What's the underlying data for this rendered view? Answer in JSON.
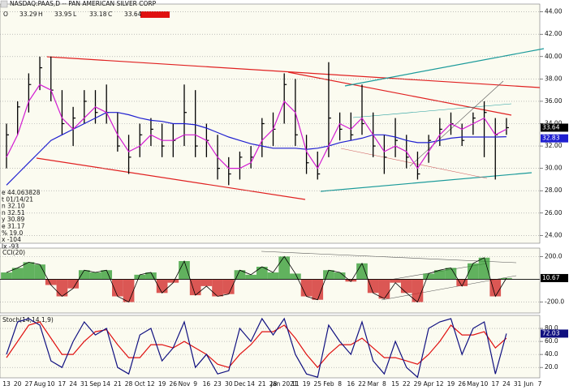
{
  "header": {
    "title": "NASDAQ:PAAS,D -- PAN AMERICAN SILVER CORP",
    "toolbar": [
      {
        "label": "O",
        "value": "33.29"
      },
      {
        "label": "H",
        "value": "33.95"
      },
      {
        "label": "L",
        "value": "33.18"
      },
      {
        "label": "C",
        "value": "33.64"
      }
    ],
    "info": [
      "e  44.063828",
      "t  01/14/21",
      "n  32.10",
      "n  32.51",
      "y  30.89",
      "e  31.17",
      "%  19.0",
      "x  -104",
      "lx  -93"
    ]
  },
  "chart_data": [
    {
      "type": "hlc",
      "ylim": [
        23.3,
        44.7
      ],
      "color": "#000000",
      "yticks": [
        {
          "value": 24,
          "label": "24.00"
        },
        {
          "value": 26,
          "label": "26.00"
        },
        {
          "value": 28,
          "label": "28.00"
        },
        {
          "value": 30,
          "label": "30.00"
        },
        {
          "value": 32,
          "label": "32.00"
        },
        {
          "value": 34,
          "label": "34.00"
        },
        {
          "value": 36,
          "label": "36.00"
        },
        {
          "value": 38,
          "label": "38.00"
        },
        {
          "value": 40,
          "label": "40.00"
        },
        {
          "value": 42,
          "label": "42.00"
        },
        {
          "value": 44,
          "label": "44.00"
        }
      ],
      "high": [
        34,
        36,
        38.5,
        40,
        40,
        37,
        35.5,
        37,
        37,
        37.5,
        35,
        33,
        34,
        34.5,
        34,
        34,
        37.5,
        37,
        34,
        33,
        31,
        31.5,
        32,
        34.5,
        35,
        38.5,
        38,
        33,
        31.5,
        39.5,
        35,
        35,
        37.5,
        35,
        33,
        34.5,
        33,
        31.5,
        33,
        34.5,
        35,
        34,
        35,
        36,
        34.5,
        34.5,
        null,
        null,
        null
      ],
      "low": [
        30,
        33,
        35,
        37,
        36,
        33,
        32,
        34,
        34,
        34,
        31.5,
        29.5,
        31,
        32,
        31,
        31,
        32,
        31,
        31,
        29,
        28.5,
        29,
        30,
        31,
        32,
        34,
        32,
        29.5,
        29,
        31,
        32.5,
        32.5,
        33,
        31,
        29.5,
        31,
        30,
        29,
        30.5,
        32,
        33,
        32,
        33,
        31,
        29,
        33,
        null,
        null,
        null
      ],
      "close": [
        33,
        35.5,
        37.5,
        39,
        37,
        34,
        34.5,
        36,
        35,
        35,
        32,
        31,
        33,
        33.5,
        32,
        32.5,
        35,
        32,
        32.5,
        30,
        29.5,
        31,
        31,
        34,
        33.5,
        37.5,
        33,
        30.5,
        29.5,
        34.5,
        33.5,
        33,
        34,
        32,
        31,
        32.5,
        31,
        29.5,
        32.5,
        33.5,
        34,
        32.5,
        34.5,
        35,
        33,
        33.64,
        null,
        null,
        null
      ],
      "overlays": [
        {
          "color": "#1f1fd0",
          "values": [
            28.5,
            29.5,
            30.5,
            31.5,
            32.5,
            33,
            33.5,
            34,
            34.5,
            35,
            35,
            34.8,
            34.5,
            34.3,
            34.2,
            34,
            34,
            33.9,
            33.6,
            33.2,
            32.8,
            32.5,
            32.2,
            32,
            31.8,
            31.8,
            31.8,
            31.7,
            31.8,
            32,
            32.3,
            32.5,
            32.7,
            33,
            33,
            32.8,
            32.5,
            32.3,
            32.3,
            32.5,
            32.7,
            32.8,
            32.8,
            32.8,
            32.8,
            32.83,
            null,
            null,
            null
          ]
        },
        {
          "color": "#d21ad2",
          "values": [
            31,
            33,
            36,
            37.5,
            37,
            34.5,
            33.5,
            34.5,
            35.5,
            35,
            33,
            31.5,
            32,
            33,
            32.5,
            32.5,
            33,
            33,
            32.5,
            31,
            30,
            30,
            30.5,
            32.5,
            33.5,
            36,
            35,
            31.5,
            30,
            32,
            34,
            33.5,
            34.5,
            33,
            31.5,
            32,
            31.5,
            30,
            31.5,
            33,
            34,
            33.5,
            34,
            34.5,
            33,
            33.5,
            null,
            null,
            null
          ]
        }
      ]
    },
    {
      "type": "bar",
      "label": "CCI(20)",
      "ylim": [
        -296,
        274
      ],
      "up_color": "#2e9a2e",
      "down_color": "#d02020",
      "yticks": [
        {
          "value": -200,
          "label": "-200.0"
        },
        {
          "value": 200,
          "label": "200.0"
        }
      ],
      "values": [
        60,
        100,
        150,
        130,
        -50,
        -150,
        -80,
        80,
        60,
        80,
        -150,
        -200,
        40,
        60,
        -120,
        -30,
        160,
        -140,
        -60,
        -150,
        -130,
        80,
        40,
        110,
        60,
        200,
        50,
        -150,
        -180,
        80,
        60,
        -20,
        140,
        -120,
        -170,
        -30,
        -120,
        -200,
        50,
        80,
        100,
        -60,
        140,
        190,
        -150,
        10.67,
        null,
        null,
        null
      ]
    },
    {
      "type": "line",
      "label": "Stoch(14,14,1,9)",
      "ylim": [
        4,
        100
      ],
      "yticks": [
        {
          "value": 20,
          "label": "20.0"
        },
        {
          "value": 40,
          "label": "40.0"
        },
        {
          "value": 60,
          "label": "60.0"
        },
        {
          "value": 80,
          "label": "80.0"
        }
      ],
      "categories": [
        "13",
        "20",
        "27",
        "Aug",
        "10",
        "17",
        "24",
        "31",
        "Sep",
        "14",
        "21",
        "28",
        "Oct",
        "12",
        "19",
        "26",
        "Nov",
        "9",
        "16",
        "23",
        "30",
        "Dec",
        "14",
        "21",
        "28",
        "Jan 2021",
        "11",
        "19",
        "25",
        "Feb",
        "8",
        "16",
        "22",
        "Mar",
        "8",
        "15",
        "22",
        "29",
        "Apr",
        "12",
        "19",
        "26",
        "May",
        "10",
        "17",
        "24",
        "31",
        "Jun",
        "7"
      ],
      "series": [
        {
          "color": "#e01010",
          "values": [
            35,
            60,
            85,
            90,
            65,
            40,
            40,
            60,
            75,
            78,
            55,
            35,
            35,
            55,
            55,
            50,
            60,
            50,
            40,
            25,
            20,
            40,
            55,
            75,
            75,
            85,
            65,
            40,
            20,
            40,
            55,
            55,
            65,
            50,
            35,
            35,
            30,
            25,
            40,
            60,
            85,
            70,
            70,
            75,
            50,
            65,
            null,
            null,
            null
          ]
        },
        {
          "color": "#101080",
          "values": [
            40,
            90,
            95,
            85,
            30,
            20,
            60,
            90,
            70,
            80,
            20,
            10,
            70,
            80,
            30,
            50,
            90,
            20,
            40,
            10,
            15,
            80,
            60,
            95,
            70,
            95,
            40,
            10,
            5,
            85,
            60,
            40,
            90,
            30,
            10,
            60,
            20,
            5,
            80,
            90,
            95,
            40,
            80,
            90,
            10,
            72.03,
            null,
            null,
            null
          ]
        }
      ]
    }
  ]
}
